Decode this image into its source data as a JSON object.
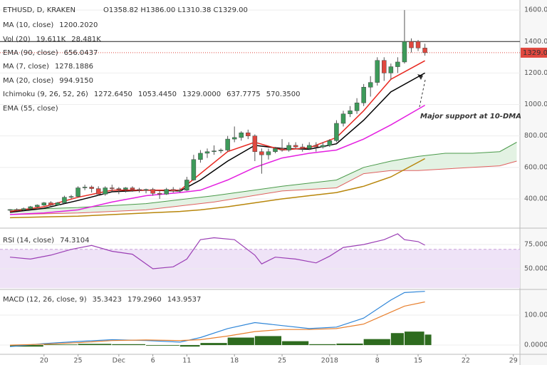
{
  "chart_data": [
    {
      "type": "candlestick",
      "title": "ETHUSD, D, KRAKEN",
      "ohlc_text": "O1358.82 H1386.00 L1310.38 C1329.00",
      "annotation": "Major support at 10-DMA",
      "last_label": "1329.00",
      "hline": 1400,
      "up_color": "#3d9a5a",
      "down_color": "#e0483f",
      "xlim": [
        -1.47,
        74.97
      ],
      "ylim": [
        214,
        1664
      ],
      "yticks": [
        {
          "value": 400,
          "label": "400.00"
        },
        {
          "value": 600,
          "label": "600.00"
        },
        {
          "value": 800,
          "label": "800.00"
        },
        {
          "value": 1000,
          "label": "1000.00"
        },
        {
          "value": 1200,
          "label": "1200.00"
        },
        {
          "value": 1400,
          "label": "1400.00"
        },
        {
          "value": 1600,
          "label": "1600.00"
        }
      ],
      "xticks": [
        {
          "value": 5,
          "label": "20"
        },
        {
          "value": 10,
          "label": "25"
        },
        {
          "value": 16,
          "label": "Dec"
        },
        {
          "value": 21,
          "label": "6"
        },
        {
          "value": 26,
          "label": "11"
        },
        {
          "value": 33,
          "label": "18"
        },
        {
          "value": 40,
          "label": "25"
        },
        {
          "value": 47,
          "label": "2018"
        },
        {
          "value": 54,
          "label": "8"
        },
        {
          "value": 60,
          "label": "15"
        },
        {
          "value": 67,
          "label": "22"
        },
        {
          "value": 74,
          "label": "29"
        }
      ],
      "x": [
        0,
        1,
        2,
        3,
        4,
        5,
        6,
        7,
        8,
        9,
        10,
        11,
        12,
        13,
        14,
        15,
        16,
        17,
        18,
        19,
        20,
        21,
        22,
        23,
        24,
        25,
        26,
        27,
        28,
        29,
        30,
        31,
        32,
        33,
        34,
        35,
        36,
        37,
        38,
        39,
        40,
        41,
        42,
        43,
        44,
        45,
        46,
        47,
        48,
        49,
        50,
        51,
        52,
        53,
        54,
        55,
        56,
        57,
        58,
        59,
        60,
        61
      ],
      "ohlc": [
        [
          330,
          335,
          320,
          332
        ],
        [
          332,
          340,
          325,
          330
        ],
        [
          330,
          345,
          325,
          338
        ],
        [
          338,
          355,
          335,
          350
        ],
        [
          350,
          365,
          345,
          360
        ],
        [
          360,
          380,
          355,
          375
        ],
        [
          375,
          385,
          355,
          360
        ],
        [
          360,
          380,
          355,
          375
        ],
        [
          375,
          420,
          370,
          410
        ],
        [
          410,
          425,
          400,
          415
        ],
        [
          415,
          480,
          410,
          470
        ],
        [
          470,
          490,
          455,
          475
        ],
        [
          475,
          485,
          440,
          465
        ],
        [
          465,
          480,
          420,
          430
        ],
        [
          430,
          480,
          420,
          470
        ],
        [
          470,
          490,
          450,
          465
        ],
        [
          465,
          475,
          430,
          460
        ],
        [
          460,
          475,
          440,
          470
        ],
        [
          470,
          480,
          445,
          460
        ],
        [
          460,
          470,
          440,
          455
        ],
        [
          455,
          465,
          435,
          460
        ],
        [
          460,
          470,
          420,
          435
        ],
        [
          435,
          450,
          400,
          430
        ],
        [
          430,
          470,
          425,
          460
        ],
        [
          460,
          475,
          440,
          450
        ],
        [
          450,
          470,
          440,
          455
        ],
        [
          455,
          540,
          450,
          520
        ],
        [
          520,
          680,
          515,
          650
        ],
        [
          650,
          710,
          630,
          690
        ],
        [
          690,
          720,
          660,
          700
        ],
        [
          700,
          740,
          680,
          705
        ],
        [
          705,
          720,
          690,
          710
        ],
        [
          710,
          800,
          700,
          780
        ],
        [
          780,
          860,
          760,
          790
        ],
        [
          790,
          830,
          770,
          820
        ],
        [
          820,
          840,
          780,
          800
        ],
        [
          800,
          810,
          640,
          700
        ],
        [
          700,
          720,
          560,
          680
        ],
        [
          680,
          720,
          650,
          700
        ],
        [
          700,
          730,
          690,
          720
        ],
        [
          720,
          780,
          700,
          710
        ],
        [
          710,
          760,
          700,
          740
        ],
        [
          740,
          760,
          720,
          730
        ],
        [
          730,
          750,
          700,
          720
        ],
        [
          720,
          760,
          710,
          740
        ],
        [
          740,
          760,
          700,
          730
        ],
        [
          730,
          760,
          720,
          740
        ],
        [
          740,
          780,
          730,
          770
        ],
        [
          770,
          900,
          760,
          880
        ],
        [
          880,
          960,
          860,
          940
        ],
        [
          940,
          990,
          920,
          960
        ],
        [
          960,
          1040,
          940,
          1010
        ],
        [
          1010,
          1130,
          990,
          1110
        ],
        [
          1110,
          1180,
          1050,
          1140
        ],
        [
          1140,
          1300,
          1120,
          1280
        ],
        [
          1280,
          1300,
          1150,
          1200
        ],
        [
          1200,
          1260,
          1160,
          1240
        ],
        [
          1240,
          1300,
          1200,
          1270
        ],
        [
          1270,
          1600,
          1260,
          1400
        ],
        [
          1400,
          1420,
          1330,
          1360
        ],
        [
          1400,
          1410,
          1340,
          1358.82
        ],
        [
          1358.82,
          1386,
          1310.38,
          1329
        ]
      ],
      "lines": [
        {
          "color": "#000000",
          "x": [
            0,
            5,
            10,
            15,
            20,
            25,
            28,
            32,
            36,
            40,
            44,
            48,
            52,
            56,
            61
          ],
          "values": [
            315,
            340,
            390,
            445,
            455,
            450,
            520,
            640,
            740,
            720,
            715,
            750,
            900,
            1080,
            1200
          ]
        },
        {
          "color": "#e8271f",
          "x": [
            0,
            5,
            10,
            15,
            20,
            25,
            28,
            32,
            36,
            40,
            44,
            48,
            52,
            56,
            61
          ],
          "values": [
            320,
            350,
            410,
            455,
            455,
            455,
            560,
            700,
            760,
            710,
            725,
            790,
            960,
            1160,
            1278
          ]
        },
        {
          "color": "#e41fe0",
          "x": [
            0,
            5,
            10,
            15,
            20,
            25,
            28,
            32,
            36,
            40,
            44,
            48,
            52,
            56,
            61
          ],
          "values": [
            300,
            310,
            330,
            380,
            420,
            440,
            455,
            520,
            600,
            660,
            690,
            710,
            780,
            870,
            995
          ]
        },
        {
          "color": "#b8860b",
          "x": [
            0,
            5,
            10,
            15,
            20,
            25,
            28,
            32,
            36,
            40,
            44,
            48,
            52,
            56,
            61
          ],
          "values": [
            280,
            285,
            290,
            300,
            310,
            320,
            330,
            350,
            375,
            400,
            420,
            440,
            480,
            540,
            656
          ]
        }
      ],
      "cloud": {
        "x": [
          0,
          10,
          20,
          30,
          40,
          48,
          52,
          56,
          60,
          64,
          68,
          72,
          74.5
        ],
        "upper": [
          330,
          345,
          370,
          420,
          480,
          520,
          600,
          640,
          670,
          690,
          690,
          700,
          760
        ],
        "lower": [
          300,
          310,
          330,
          380,
          450,
          470,
          560,
          580,
          580,
          590,
          600,
          610,
          640
        ],
        "upper_color": "#4a9a4a",
        "lower_color": "#e06060",
        "fill": "#e3f2e3"
      },
      "legend": [
        {
          "label": "MA (10, close)",
          "values": [
            "1200.2020"
          ],
          "colors": [
            "#000000"
          ]
        },
        {
          "label": "Vol (20)",
          "values": [
            "19.611K",
            "28.481K"
          ],
          "colors": [
            "#e0483f",
            "#3a8be0"
          ]
        },
        {
          "label": "EMA (90, close)",
          "values": [
            "656.0437"
          ],
          "colors": [
            "#b8860b"
          ]
        },
        {
          "label": "MA (7, close)",
          "values": [
            "1278.1886"
          ],
          "colors": [
            "#e8271f"
          ]
        },
        {
          "label": "MA (20, close)",
          "values": [
            "994.9150"
          ],
          "colors": [
            "#e41fe0"
          ]
        },
        {
          "label": "Ichimoku (9, 26, 52, 26)",
          "values": [
            "1272.6450",
            "1053.4450",
            "1329.0000",
            "637.7775",
            "570.3500"
          ],
          "colors": [
            "#2f86d8",
            "#a0342f",
            "#3d9a5a",
            "#3d9a5a",
            "#e0483f"
          ]
        },
        {
          "label": "EMA (55, close)",
          "values": [],
          "colors": []
        }
      ]
    },
    {
      "type": "line",
      "title": "RSI (14, close)",
      "value_label": "74.3104",
      "color": "#9b3fb5",
      "band": [
        30,
        70
      ],
      "band_color": "#efe3f7",
      "xlim": [
        -1.47,
        74.97
      ],
      "ylim": [
        29.4,
        89.7
      ],
      "yticks": [
        {
          "value": 50,
          "label": "50.0000"
        },
        {
          "value": 75,
          "label": "75.0000"
        }
      ],
      "x": [
        0,
        3,
        6,
        9,
        12,
        15,
        18,
        21,
        24,
        26,
        28,
        30,
        33,
        36,
        37,
        39,
        42,
        45,
        47,
        49,
        52,
        55,
        57,
        58,
        60,
        61
      ],
      "values": [
        62,
        60,
        64,
        70,
        74,
        68,
        65,
        50,
        52,
        60,
        80,
        82,
        80,
        64,
        55,
        62,
        60,
        56,
        63,
        72,
        75,
        80,
        86,
        80,
        78,
        74.3
      ]
    },
    {
      "type": "macd",
      "title": "MACD (12, 26, close, 9)",
      "value_labels": [
        "35.3423",
        "179.2960",
        "143.9537"
      ],
      "label_colors": [
        "#2e6b1f",
        "#2f86d8",
        "#e8802f"
      ],
      "xlim": [
        -1.47,
        74.97
      ],
      "ylim": [
        -26,
        176
      ],
      "yticks": [
        {
          "value": 0,
          "label": "0.0000"
        },
        {
          "value": 100,
          "label": "100.0000"
        }
      ],
      "x": [
        0,
        5,
        10,
        15,
        20,
        25,
        28,
        32,
        36,
        40,
        44,
        48,
        52,
        56,
        58,
        61
      ],
      "series": [
        {
          "color": "#2f86d8",
          "values": [
            -5,
            5,
            12,
            18,
            15,
            10,
            25,
            55,
            75,
            65,
            55,
            60,
            90,
            150,
            175,
            179
          ]
        },
        {
          "color": "#e8802f",
          "values": [
            0,
            3,
            8,
            15,
            17,
            15,
            18,
            30,
            45,
            52,
            52,
            55,
            70,
            110,
            130,
            144
          ]
        }
      ],
      "histogram": {
        "color": "#2e6b1f",
        "values": [
          -5,
          2,
          4,
          3,
          -2,
          -5,
          7,
          25,
          30,
          13,
          3,
          5,
          20,
          40,
          45,
          35
        ]
      }
    }
  ]
}
